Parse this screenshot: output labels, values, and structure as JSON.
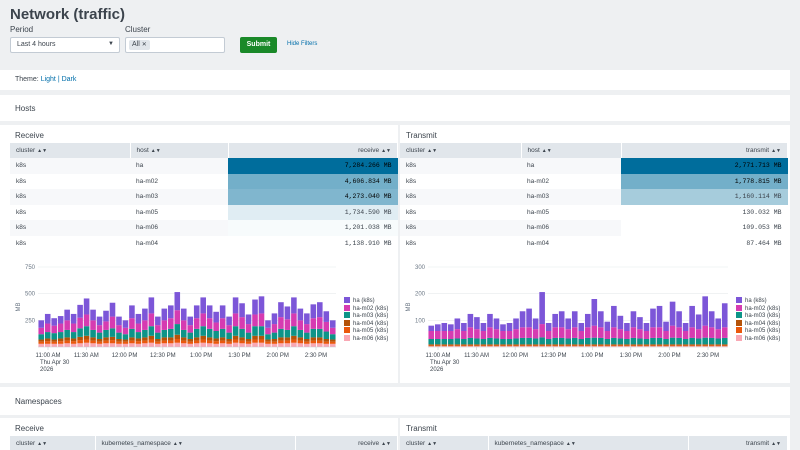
{
  "page": {
    "title": "Network (traffic)"
  },
  "filters": {
    "period_label": "Period",
    "period_value": "Last 4 hours",
    "cluster_label": "Cluster",
    "cluster_chip": "All",
    "submit_label": "Submit",
    "hide_filters_label": "Hide Filters"
  },
  "theme": {
    "prefix": "Theme:",
    "light": "Light",
    "sep": "|",
    "dark": "Dark"
  },
  "hosts": {
    "title": "Hosts",
    "receive": {
      "title": "Receive",
      "columns": [
        "cluster",
        "host",
        "receive"
      ],
      "rows": [
        {
          "cluster": "k8s",
          "host": "ha",
          "value": "7,284.266 MB",
          "heat": 1.0
        },
        {
          "cluster": "k8s",
          "host": "ha-m02",
          "value": "4,606.834 MB",
          "heat": 0.55
        },
        {
          "cluster": "k8s",
          "host": "ha-m03",
          "value": "4,273.040 MB",
          "heat": 0.5
        },
        {
          "cluster": "k8s",
          "host": "ha-m05",
          "value": "1,734.590 MB",
          "heat": 0.12
        },
        {
          "cluster": "k8s",
          "host": "ha-m06",
          "value": "1,201.038 MB",
          "heat": 0.03
        },
        {
          "cluster": "k8s",
          "host": "ha-m04",
          "value": "1,138.910 MB",
          "heat": 0.0
        }
      ]
    },
    "transmit": {
      "title": "Transmit",
      "columns": [
        "cluster",
        "host",
        "transmit"
      ],
      "rows": [
        {
          "cluster": "k8s",
          "host": "ha",
          "value": "2,771.713 MB",
          "heat": 1.0
        },
        {
          "cluster": "k8s",
          "host": "ha-m02",
          "value": "1,778.815 MB",
          "heat": 0.55
        },
        {
          "cluster": "k8s",
          "host": "ha-m03",
          "value": "1,160.114 MB",
          "heat": 0.35
        },
        {
          "cluster": "k8s",
          "host": "ha-m05",
          "value": "130.032 MB",
          "heat": 0.0
        },
        {
          "cluster": "k8s",
          "host": "ha-m06",
          "value": "109.053 MB",
          "heat": 0.0
        },
        {
          "cluster": "k8s",
          "host": "ha-m04",
          "value": "87.464 MB",
          "heat": 0.0
        }
      ]
    }
  },
  "namespaces": {
    "title": "Namespaces",
    "receive": {
      "title": "Receive",
      "columns": [
        "cluster",
        "kubernetes_namespace",
        "receive"
      ]
    },
    "transmit": {
      "title": "Transmit",
      "columns": [
        "cluster",
        "kubernetes_namespace",
        "transmit"
      ]
    }
  },
  "colors": {
    "heat_max": "#006d9c",
    "heat_min": "#ffffff",
    "accent_green": "#1a8929",
    "link": "#006eaa"
  },
  "chart_data": [
    {
      "type": "bar",
      "stacked": true,
      "ylabel": "MB",
      "ylim": [
        0,
        750
      ],
      "yticks": [
        250,
        500,
        750
      ],
      "xtick_labels": [
        "11:00 AM",
        "11:30 AM",
        "12:00 PM",
        "12:30 PM",
        "1:00 PM",
        "1:30 PM",
        "2:00 PM",
        "2:30 PM"
      ],
      "xtick_sub": [
        "Thu Apr 30",
        "2026"
      ],
      "series": [
        {
          "name": "ha (k8s)",
          "color": "#7c56d8",
          "values": [
            70,
            90,
            70,
            70,
            100,
            90,
            120,
            150,
            100,
            80,
            100,
            130,
            80,
            70,
            120,
            90,
            110,
            150,
            80,
            110,
            120,
            170,
            110,
            80,
            120,
            150,
            120,
            100,
            120,
            80,
            150,
            130,
            90,
            140,
            160,
            70,
            100,
            140,
            120,
            150,
            110,
            100,
            130,
            140,
            100,
            70
          ]
        },
        {
          "name": "ha-m02 (k8s)",
          "color": "#d63bb1",
          "values": [
            60,
            80,
            70,
            80,
            90,
            80,
            100,
            110,
            90,
            70,
            80,
            110,
            70,
            60,
            100,
            80,
            90,
            120,
            70,
            90,
            100,
            130,
            90,
            70,
            100,
            120,
            100,
            80,
            100,
            70,
            120,
            110,
            80,
            110,
            120,
            60,
            80,
            110,
            100,
            120,
            90,
            80,
            100,
            110,
            90,
            60
          ]
        },
        {
          "name": "ha-m03 (k8s)",
          "color": "#0d9488",
          "values": [
            50,
            60,
            60,
            60,
            70,
            60,
            80,
            90,
            70,
            60,
            70,
            80,
            60,
            50,
            80,
            60,
            70,
            90,
            60,
            70,
            80,
            100,
            70,
            60,
            80,
            90,
            80,
            70,
            80,
            60,
            90,
            80,
            60,
            90,
            90,
            50,
            60,
            80,
            70,
            90,
            70,
            60,
            80,
            80,
            70,
            50
          ]
        },
        {
          "name": "ha-m04 (k8s)",
          "color": "#b45309",
          "values": [
            20,
            25,
            20,
            25,
            30,
            25,
            30,
            35,
            30,
            25,
            30,
            30,
            25,
            20,
            30,
            25,
            30,
            35,
            25,
            30,
            30,
            40,
            30,
            25,
            30,
            35,
            30,
            25,
            30,
            25,
            35,
            30,
            25,
            35,
            35,
            20,
            25,
            30,
            30,
            35,
            30,
            25,
            30,
            30,
            25,
            20
          ]
        },
        {
          "name": "ha-m05 (k8s)",
          "color": "#ea580c",
          "values": [
            20,
            25,
            20,
            25,
            25,
            25,
            30,
            30,
            25,
            20,
            25,
            30,
            20,
            20,
            25,
            25,
            25,
            30,
            20,
            25,
            25,
            35,
            25,
            20,
            25,
            30,
            25,
            25,
            25,
            20,
            30,
            25,
            20,
            30,
            30,
            20,
            20,
            25,
            25,
            30,
            25,
            20,
            25,
            25,
            20,
            20
          ]
        },
        {
          "name": "ha-m06 (k8s)",
          "color": "#f9a8b4",
          "values": [
            30,
            30,
            30,
            30,
            35,
            30,
            35,
            40,
            35,
            30,
            35,
            35,
            30,
            30,
            35,
            30,
            35,
            40,
            30,
            35,
            35,
            40,
            35,
            30,
            35,
            40,
            35,
            30,
            35,
            30,
            40,
            35,
            30,
            40,
            40,
            30,
            30,
            35,
            35,
            40,
            35,
            30,
            35,
            35,
            30,
            30
          ]
        }
      ]
    },
    {
      "type": "bar",
      "stacked": true,
      "ylabel": "MB",
      "ylim": [
        0,
        300
      ],
      "yticks": [
        100,
        200,
        300
      ],
      "xtick_labels": [
        "11:00 AM",
        "11:30 AM",
        "12:00 PM",
        "12:30 PM",
        "1:00 PM",
        "1:30 PM",
        "2:00 PM",
        "2:30 PM"
      ],
      "xtick_sub": [
        "Thu Apr 30",
        "2026"
      ],
      "series": [
        {
          "name": "ha (k8s)",
          "color": "#7c56d8",
          "values": [
            20,
            25,
            30,
            25,
            40,
            30,
            50,
            45,
            30,
            50,
            40,
            25,
            30,
            40,
            60,
            70,
            40,
            120,
            30,
            50,
            60,
            40,
            60,
            30,
            50,
            100,
            60,
            35,
            80,
            50,
            30,
            60,
            45,
            30,
            70,
            80,
            35,
            90,
            60,
            30,
            80,
            55,
            110,
            60,
            40,
            90
          ]
        },
        {
          "name": "ha-m02 (k8s)",
          "color": "#d63bb1",
          "values": [
            30,
            30,
            30,
            30,
            35,
            30,
            40,
            35,
            30,
            40,
            35,
            30,
            30,
            35,
            40,
            40,
            35,
            50,
            30,
            40,
            40,
            35,
            40,
            30,
            40,
            45,
            40,
            30,
            40,
            35,
            30,
            40,
            35,
            30,
            40,
            40,
            30,
            45,
            40,
            30,
            40,
            35,
            45,
            40,
            35,
            40
          ]
        },
        {
          "name": "ha-m03 (k8s)",
          "color": "#0d9488",
          "values": [
            20,
            20,
            20,
            20,
            22,
            20,
            24,
            22,
            20,
            24,
            22,
            20,
            20,
            22,
            24,
            24,
            22,
            26,
            20,
            24,
            24,
            22,
            24,
            20,
            24,
            25,
            24,
            20,
            24,
            22,
            20,
            24,
            22,
            20,
            24,
            24,
            20,
            25,
            24,
            20,
            24,
            22,
            25,
            24,
            22,
            24
          ]
        },
        {
          "name": "ha-m04 (k8s)",
          "color": "#b45309",
          "values": [
            4,
            4,
            4,
            4,
            4,
            4,
            4,
            4,
            4,
            4,
            4,
            4,
            4,
            4,
            4,
            4,
            4,
            4,
            4,
            4,
            4,
            4,
            4,
            4,
            4,
            4,
            4,
            4,
            4,
            4,
            4,
            4,
            4,
            4,
            4,
            4,
            4,
            4,
            4,
            4,
            4,
            4,
            4,
            4,
            4,
            4
          ]
        },
        {
          "name": "ha-m05 (k8s)",
          "color": "#ea580c",
          "values": [
            3,
            3,
            3,
            3,
            3,
            3,
            3,
            3,
            3,
            3,
            3,
            3,
            3,
            3,
            3,
            3,
            3,
            3,
            3,
            3,
            3,
            3,
            3,
            3,
            3,
            3,
            3,
            3,
            3,
            3,
            3,
            3,
            3,
            3,
            3,
            3,
            3,
            3,
            3,
            3,
            3,
            3,
            3,
            3,
            3,
            3
          ]
        },
        {
          "name": "ha-m06 (k8s)",
          "color": "#f9a8b4",
          "values": [
            3,
            3,
            3,
            3,
            3,
            3,
            3,
            3,
            3,
            3,
            3,
            3,
            3,
            3,
            3,
            3,
            3,
            3,
            3,
            3,
            3,
            3,
            3,
            3,
            3,
            3,
            3,
            3,
            3,
            3,
            3,
            3,
            3,
            3,
            3,
            3,
            3,
            3,
            3,
            3,
            3,
            3,
            3,
            3,
            3,
            3
          ]
        }
      ]
    }
  ]
}
